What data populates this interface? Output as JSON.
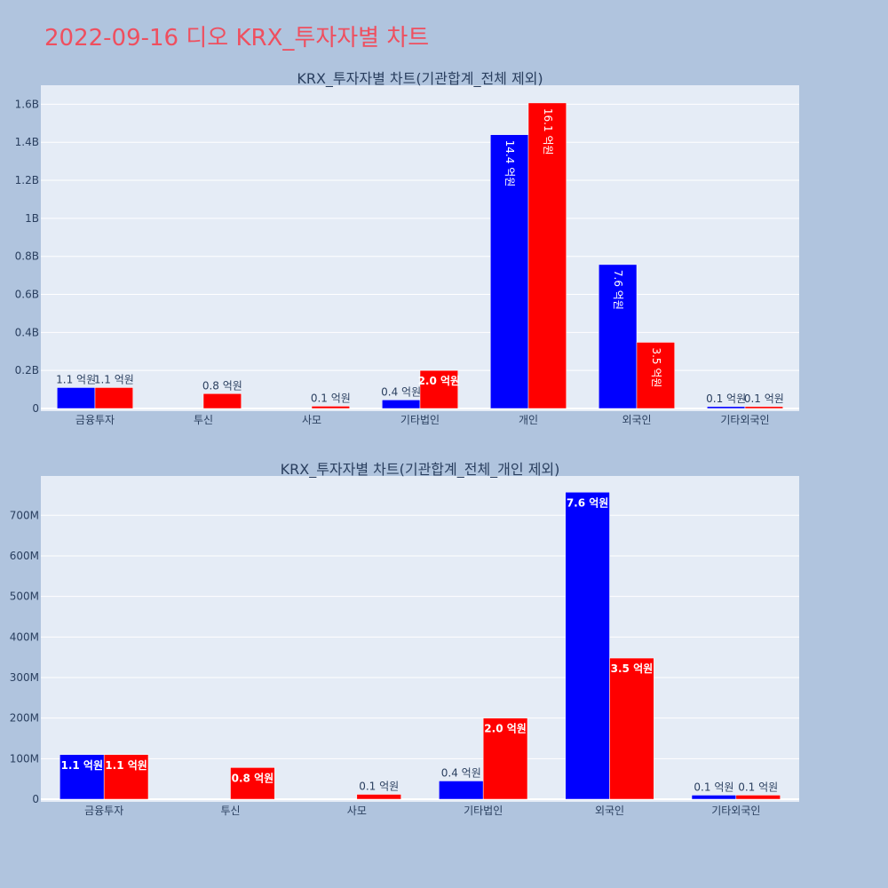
{
  "title": "2022-09-16 디오 KRX_투자자별 차트",
  "colors": {
    "page_bg": "#b0c4de",
    "plot_bg": "#e5ecf6",
    "title": "#ef4f5f",
    "series_blue": "#0000ff",
    "series_red": "#ff0000"
  },
  "chart_data": [
    {
      "type": "bar",
      "title": "KRX_투자자별 차트(기관합계_전체 제외)",
      "categories": [
        "금융투자",
        "투신",
        "사모",
        "기타법인",
        "개인",
        "외국인",
        "기타외국인"
      ],
      "yticks": [
        {
          "value": 0,
          "label": "0"
        },
        {
          "value": 200000000,
          "label": "0.2B"
        },
        {
          "value": 400000000,
          "label": "0.4B"
        },
        {
          "value": 600000000,
          "label": "0.6B"
        },
        {
          "value": 800000000,
          "label": "0.8B"
        },
        {
          "value": 1000000000,
          "label": "1B"
        },
        {
          "value": 1200000000,
          "label": "1.2B"
        },
        {
          "value": 1400000000,
          "label": "1.4B"
        },
        {
          "value": 1600000000,
          "label": "1.6B"
        }
      ],
      "ylim": [
        0,
        1700000000
      ],
      "grid": true,
      "series": [
        {
          "color": "#0000ff",
          "values": [
            110000000,
            null,
            null,
            45000000,
            1440000000,
            757000000,
            10000000
          ],
          "labels": [
            "1.1 억원",
            "",
            "",
            "0.4 억원",
            "14.4 억원",
            "7.6 억원",
            "0.1 억원"
          ]
        },
        {
          "color": "#ff0000",
          "values": [
            110000000,
            78000000,
            12000000,
            200000000,
            1607000000,
            348000000,
            10000000
          ],
          "labels": [
            "1.1 억원",
            "0.8 억원",
            "0.1 억원",
            "2.0 억원",
            "16.1 억원",
            "3.5 억원",
            "0.1 억원"
          ]
        }
      ]
    },
    {
      "type": "bar",
      "title": "KRX_투자자별 차트(기관합계_전체_개인 제외)",
      "categories": [
        "금융투자",
        "투신",
        "사모",
        "기타법인",
        "외국인",
        "기타외국인"
      ],
      "yticks": [
        {
          "value": 0,
          "label": "0"
        },
        {
          "value": 100000000,
          "label": "100M"
        },
        {
          "value": 200000000,
          "label": "200M"
        },
        {
          "value": 300000000,
          "label": "300M"
        },
        {
          "value": 400000000,
          "label": "400M"
        },
        {
          "value": 500000000,
          "label": "500M"
        },
        {
          "value": 600000000,
          "label": "600M"
        },
        {
          "value": 700000000,
          "label": "700M"
        }
      ],
      "ylim": [
        0,
        797000000
      ],
      "grid": true,
      "series": [
        {
          "color": "#0000ff",
          "values": [
            110000000,
            null,
            null,
            45000000,
            757000000,
            10000000
          ],
          "labels": [
            "1.1 억원",
            "",
            "",
            "0.4 억원",
            "7.6 억원",
            "0.1 억원"
          ]
        },
        {
          "color": "#ff0000",
          "values": [
            110000000,
            78000000,
            12000000,
            200000000,
            348000000,
            10000000
          ],
          "labels": [
            "1.1 억원",
            "0.8 억원",
            "0.1 억원",
            "2.0 억원",
            "3.5 억원",
            "0.1 억원"
          ]
        }
      ]
    }
  ]
}
